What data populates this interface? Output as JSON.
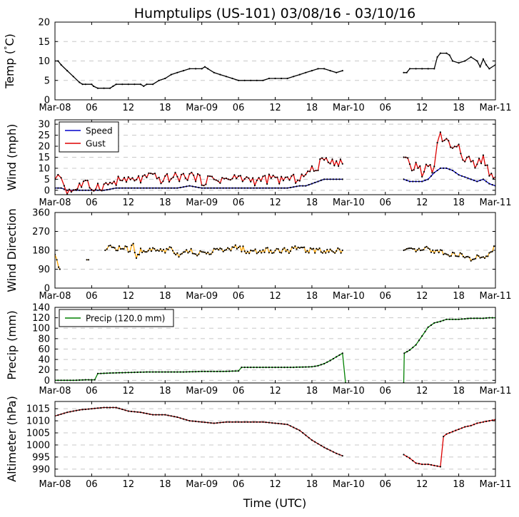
{
  "chart_data": {
    "type": "line",
    "title": "Humptulips (US-101) 03/08/16 - 03/10/16",
    "xlabel": "Time (UTC)",
    "x_unit": "hours since Mar-08 00:00 UTC",
    "xlim": [
      0,
      72
    ],
    "x_ticks": [
      0,
      6,
      12,
      18,
      24,
      30,
      36,
      42,
      48,
      54,
      60,
      66,
      72
    ],
    "x_tick_labels": [
      "Mar-08",
      "06",
      "12",
      "18",
      "Mar-09",
      "06",
      "12",
      "18",
      "Mar-10",
      "06",
      "12",
      "18",
      "Mar-11"
    ],
    "panels": [
      {
        "id": "temp",
        "ylabel": "Temp ($^{\\circ}$C)",
        "ylabel_parts": [
          "Temp (",
          "°",
          "C)"
        ],
        "ylim": [
          0,
          20
        ],
        "yticks": [
          0,
          5,
          10,
          15,
          20
        ],
        "series": [
          {
            "name": "Temp",
            "color": "#000000",
            "marker": "#000000",
            "step": 1.0,
            "x": [
              0,
              0.5,
              1,
              2,
              3,
              4,
              4.5,
              5,
              6,
              6.3,
              7,
              8,
              9,
              9.5,
              10,
              11,
              12,
              13,
              14,
              14.5,
              15,
              16,
              17,
              18,
              19,
              20,
              21,
              22,
              23,
              24,
              24.5,
              25,
              26,
              27,
              28,
              29,
              30,
              31,
              32,
              33,
              34,
              35,
              36,
              37,
              38,
              39,
              40,
              41,
              42,
              43,
              44,
              45,
              46,
              47
            ],
            "y": [
              10,
              10,
              9,
              7.5,
              6,
              4.5,
              4,
              4,
              4,
              3.5,
              3,
              3,
              3,
              3.5,
              4,
              4,
              4,
              4,
              4,
              3.5,
              4,
              4,
              5,
              5.5,
              6.5,
              7,
              7.5,
              8,
              8,
              8,
              8.5,
              8,
              7,
              6.5,
              6,
              5.5,
              5,
              5,
              5,
              5,
              5,
              5.5,
              5.5,
              5.5,
              5.5,
              6,
              6.5,
              7,
              7.5,
              8,
              8,
              7.5,
              7,
              7.5
            ]
          },
          {
            "name": "Temp",
            "color": "#000000",
            "marker": "#000000",
            "step": 1.0,
            "x": [
              57,
              57.5,
              58,
              59,
              60,
              61,
              62,
              62.5,
              63,
              64,
              64.5,
              65,
              66,
              67,
              68,
              69,
              69.5,
              70,
              70.5,
              71,
              72
            ],
            "y": [
              7,
              7,
              8,
              8,
              8,
              8,
              8,
              11,
              12,
              12,
              11.5,
              10,
              9.5,
              10,
              11,
              10,
              8.5,
              10.5,
              9,
              8,
              9
            ]
          }
        ]
      },
      {
        "id": "wind",
        "ylabel": "Wind (mph)",
        "ylim": [
          -2,
          32
        ],
        "yticks": [
          0,
          5,
          10,
          15,
          20,
          25,
          30
        ],
        "legend": {
          "location": "top-left",
          "entries": [
            {
              "label": "Speed",
              "color": "#0000cc"
            },
            {
              "label": "Gust",
              "color": "#dd0000"
            }
          ]
        },
        "series": [
          {
            "name": "Speed",
            "color": "#00008b",
            "marker": "#000000",
            "step": 0.5,
            "x": [
              0,
              1,
              2,
              4,
              6,
              8,
              10,
              12,
              14,
              16,
              18,
              20,
              22,
              24,
              26,
              28,
              30,
              32,
              34,
              36,
              38,
              40,
              41,
              42,
              43,
              44,
              45,
              46,
              47
            ],
            "y": [
              1,
              1,
              0,
              0,
              0,
              0,
              1,
              1,
              1,
              1,
              1,
              1,
              2,
              1,
              1,
              1,
              1,
              1,
              1,
              1,
              1,
              2,
              2,
              3,
              4,
              5,
              5,
              5,
              5
            ]
          },
          {
            "name": "Speed",
            "color": "#0000cc",
            "marker": "#000000",
            "step": 0.5,
            "x": [
              57,
              58,
              59,
              60,
              61,
              62,
              63,
              64,
              65,
              66,
              67,
              68,
              69,
              70,
              71,
              72
            ],
            "y": [
              5,
              4,
              4,
              4,
              5,
              8,
              10,
              10,
              9,
              7,
              6,
              5,
              4,
              5,
              3,
              2
            ]
          },
          {
            "name": "Gust",
            "color": "#dd0000",
            "marker": "#000000",
            "step": 0.4,
            "x": [
              0,
              0.5,
              1,
              1.5,
              2,
              3,
              4,
              5,
              6,
              7,
              8,
              9,
              10,
              11,
              12,
              13,
              14,
              15,
              16,
              17,
              18,
              19,
              20,
              21,
              22,
              23,
              24,
              25,
              26,
              27,
              28,
              29,
              30,
              31,
              32,
              33,
              34,
              35,
              36,
              37,
              38,
              39,
              40,
              41,
              42,
              43,
              44,
              45,
              46,
              47
            ],
            "y": [
              5,
              8,
              6,
              2,
              0,
              0,
              2,
              3,
              1,
              2,
              2,
              3,
              4,
              5,
              4,
              5,
              5,
              6,
              6,
              5,
              5,
              6,
              6,
              6,
              7,
              6,
              4,
              5,
              5,
              5,
              5,
              5,
              6,
              5,
              5,
              4,
              5,
              5,
              5,
              5,
              5,
              5,
              6,
              7,
              9,
              11,
              14,
              14,
              13,
              12
            ],
            "swing": 2.2
          },
          {
            "name": "Gust",
            "color": "#dd0000",
            "marker": "#000000",
            "step": 0.4,
            "x": [
              57,
              58,
              59,
              60,
              61,
              62,
              62.5,
              63,
              64,
              65,
              66,
              67,
              68,
              69,
              70,
              71,
              72
            ],
            "y": [
              15,
              10,
              11,
              9,
              10,
              9,
              20,
              25,
              22,
              20,
              18,
              15,
              12,
              11,
              13,
              9,
              6
            ],
            "swing": 3.0
          }
        ]
      },
      {
        "id": "wdir",
        "ylabel": "Wind Direction",
        "ylim": [
          0,
          360
        ],
        "yticks": [
          0,
          90,
          180,
          270,
          360
        ],
        "series": [
          {
            "name": "Wind Direction",
            "color": "#ffa500",
            "marker": "#000000",
            "step": 0.25,
            "x": [
              0,
              0.3,
              0.6,
              0.8
            ],
            "y": [
              160,
              135,
              100,
              90
            ]
          },
          {
            "name": "Wind Direction",
            "color": "#ffa500",
            "marker": "#000000",
            "step": 0.25,
            "x": [
              5.2,
              5.5
            ],
            "y": [
              135,
              135
            ]
          },
          {
            "name": "Wind Direction",
            "color": "#ffa500",
            "marker": "#000000",
            "step": 0.25,
            "x": [
              8.2,
              8.8,
              9.3,
              10,
              11,
              12,
              12.8,
              13.3,
              14,
              16,
              18,
              19,
              20,
              22,
              24,
              26,
              28,
              30,
              32,
              34,
              36,
              38,
              40,
              42,
              44,
              46,
              47
            ],
            "y": [
              180,
              200,
              200,
              180,
              195,
              180,
              200,
              140,
              180,
              180,
              180,
              195,
              160,
              180,
              160,
              180,
              180,
              195,
              170,
              180,
              180,
              180,
              190,
              180,
              180,
              180,
              180
            ],
            "swing": 15
          },
          {
            "name": "Wind Direction",
            "color": "#ffa500",
            "marker": "#000000",
            "step": 0.25,
            "x": [
              57,
              59,
              60,
              61,
              61.5,
              62,
              63,
              64,
              65,
              66,
              67,
              68,
              69,
              70,
              71,
              72
            ],
            "y": [
              180,
              180,
              180,
              190,
              180,
              170,
              180,
              160,
              160,
              160,
              150,
              135,
              150,
              140,
              160,
              200
            ],
            "swing": 10
          }
        ]
      },
      {
        "id": "precip",
        "ylabel": "Precip (mm)",
        "ylim": [
          0,
          140
        ],
        "ylim_display": [
          -5,
          140
        ],
        "yticks": [
          0,
          20,
          40,
          60,
          80,
          100,
          120,
          140
        ],
        "legend": {
          "location": "top-left",
          "entries": [
            {
              "label": "Precip (120.0 mm)",
              "color": "#008000"
            }
          ]
        },
        "series": [
          {
            "name": "Precip",
            "color": "#008000",
            "marker": "#000000",
            "step": 0.5,
            "x": [
              0,
              3,
              5,
              6.5,
              7,
              9,
              12,
              15,
              18,
              21,
              24,
              27,
              30,
              30.5,
              33,
              36,
              39,
              42,
              43,
              44,
              45,
              46,
              47,
              47.5
            ],
            "y": [
              0,
              0,
              1,
              1,
              13,
              14,
              15,
              16,
              16,
              16,
              17,
              17,
              18,
              25,
              25,
              25,
              25,
              26,
              28,
              32,
              38,
              45,
              52,
              -5
            ]
          },
          {
            "name": "Precip",
            "color": "#008000",
            "marker": "#000000",
            "step": 0.5,
            "x": [
              57,
              57.1,
              58,
              59,
              60,
              61,
              62,
              63,
              64,
              65,
              66,
              67,
              68,
              69,
              70,
              71,
              72
            ],
            "y": [
              -5,
              52,
              58,
              68,
              85,
              102,
              110,
              113,
              117,
              117,
              117,
              118,
              119,
              119,
              119,
              120,
              120
            ]
          }
        ]
      },
      {
        "id": "alt",
        "ylabel": "Altimeter (hPa)",
        "ylim": [
          987,
          1018
        ],
        "yticks": [
          990,
          995,
          1000,
          1005,
          1010,
          1015
        ],
        "series": [
          {
            "name": "Altimeter",
            "color": "#8b0000",
            "marker": "#000000",
            "step": 0.5,
            "x": [
              0,
              2,
              4,
              6,
              8,
              10,
              12,
              14,
              16,
              18,
              20,
              22,
              24,
              26,
              28,
              30,
              32,
              34,
              36,
              38,
              40,
              42,
              44,
              46,
              47
            ],
            "y": [
              1012,
              1013.5,
              1014.5,
              1015,
              1015.5,
              1015.5,
              1014,
              1013.5,
              1012.5,
              1012.5,
              1011.5,
              1010,
              1009.5,
              1009,
              1009.5,
              1009.5,
              1009.5,
              1009.5,
              1009,
              1008.5,
              1006,
              1002,
              999,
              996.5,
              995.5
            ]
          },
          {
            "name": "Altimeter",
            "color": "#dd0000",
            "marker": "#000000",
            "step": 0.5,
            "x": [
              57,
              58,
              59,
              60,
              61,
              62,
              63,
              63.5,
              64,
              65,
              66,
              67,
              68,
              69,
              70,
              71,
              72
            ],
            "y": [
              996,
              994.5,
              992.5,
              992,
              992,
              991.5,
              991,
              1003.5,
              1004.5,
              1005.5,
              1006.5,
              1007.5,
              1008,
              1009,
              1009.5,
              1010,
              1010.5
            ]
          }
        ]
      }
    ]
  }
}
